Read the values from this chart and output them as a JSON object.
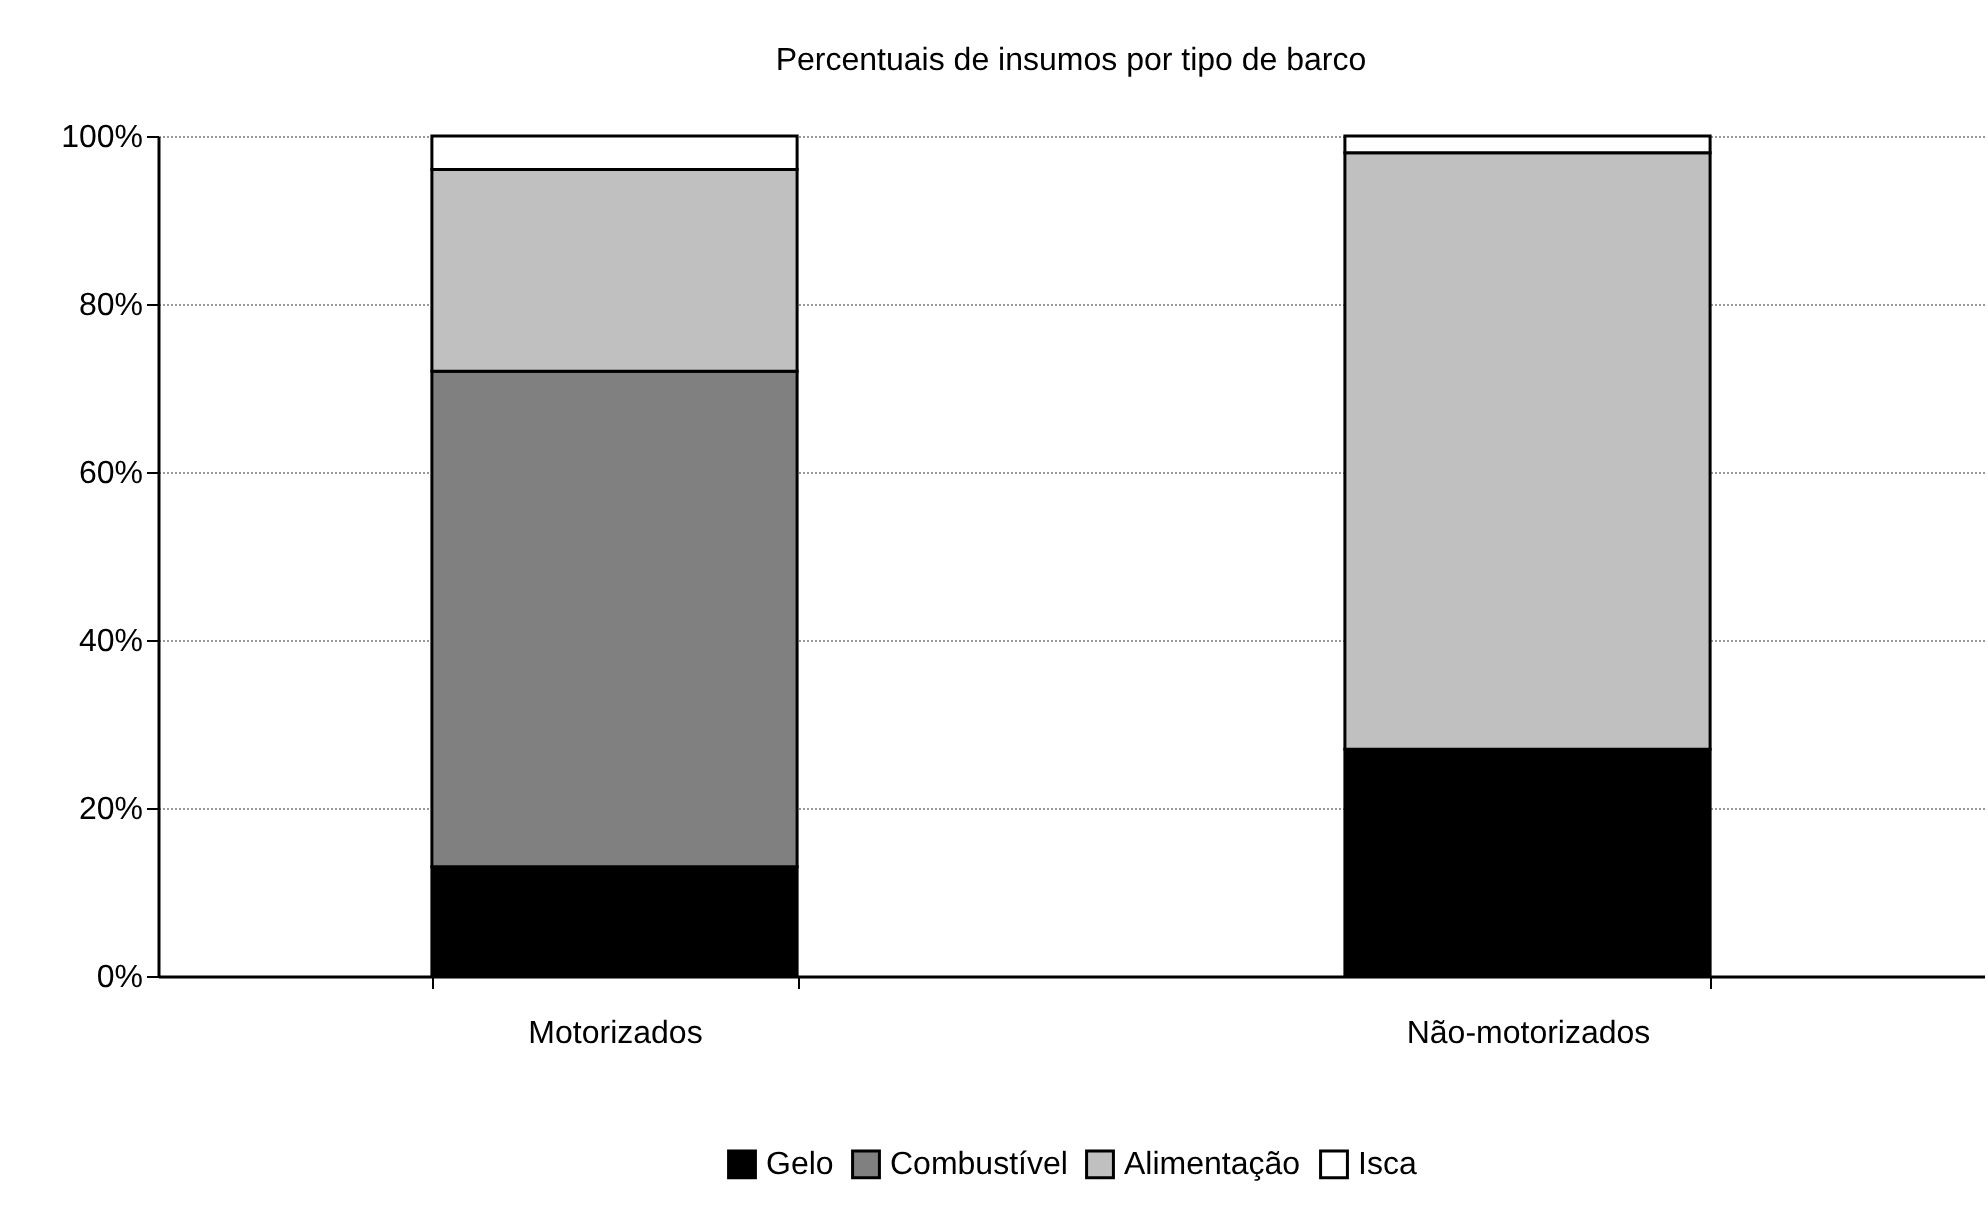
{
  "chart_data": {
    "type": "bar",
    "title": "Percentuais de insumos por tipo de barco",
    "categories": [
      "Motorizados",
      "Não-motorizados"
    ],
    "stacked": true,
    "series": [
      {
        "name": "Gelo",
        "color": "#000000",
        "values": [
          13,
          27
        ]
      },
      {
        "name": "Combustível",
        "color": "#808080",
        "values": [
          59,
          0
        ]
      },
      {
        "name": "Alimentação",
        "color": "#c0c0c0",
        "values": [
          24,
          71
        ]
      },
      {
        "name": "Isca",
        "color": "#ffffff",
        "values": [
          4,
          2
        ]
      }
    ],
    "ylim": [
      0,
      100
    ],
    "yticks": [
      {
        "value": 0,
        "label": "0%"
      },
      {
        "value": 20,
        "label": "20%"
      },
      {
        "value": 40,
        "label": "40%"
      },
      {
        "value": 60,
        "label": "60%"
      },
      {
        "value": 80,
        "label": "80%"
      },
      {
        "value": 100,
        "label": "100%"
      }
    ],
    "grid": "y",
    "legend": "bottom"
  }
}
